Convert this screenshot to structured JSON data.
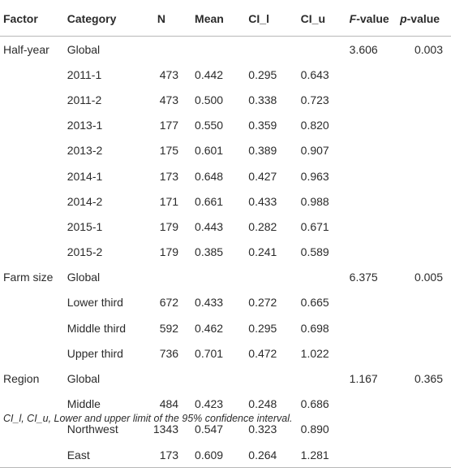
{
  "headers": {
    "factor": "Factor",
    "category": "Category",
    "n": "N",
    "mean": "Mean",
    "ci_l": "CI_l",
    "ci_u": "CI_u",
    "f_italic": "F",
    "f_rest": "-value",
    "p_italic": "p",
    "p_rest": "-value"
  },
  "rows": [
    {
      "factor": "Half-year",
      "category": "Global",
      "n": "",
      "mean": "",
      "ci_l": "",
      "ci_u": "",
      "f": "3.606",
      "p": "0.003"
    },
    {
      "factor": "",
      "category": "2011-1",
      "n": "473",
      "mean": "0.442",
      "ci_l": "0.295",
      "ci_u": "0.643",
      "f": "",
      "p": ""
    },
    {
      "factor": "",
      "category": "2011-2",
      "n": "473",
      "mean": "0.500",
      "ci_l": "0.338",
      "ci_u": "0.723",
      "f": "",
      "p": ""
    },
    {
      "factor": "",
      "category": "2013-1",
      "n": "177",
      "mean": "0.550",
      "ci_l": "0.359",
      "ci_u": "0.820",
      "f": "",
      "p": ""
    },
    {
      "factor": "",
      "category": "2013-2",
      "n": "175",
      "mean": "0.601",
      "ci_l": "0.389",
      "ci_u": "0.907",
      "f": "",
      "p": ""
    },
    {
      "factor": "",
      "category": "2014-1",
      "n": "173",
      "mean": "0.648",
      "ci_l": "0.427",
      "ci_u": "0.963",
      "f": "",
      "p": ""
    },
    {
      "factor": "",
      "category": "2014-2",
      "n": "171",
      "mean": "0.661",
      "ci_l": "0.433",
      "ci_u": "0.988",
      "f": "",
      "p": ""
    },
    {
      "factor": "",
      "category": "2015-1",
      "n": "179",
      "mean": "0.443",
      "ci_l": "0.282",
      "ci_u": "0.671",
      "f": "",
      "p": ""
    },
    {
      "factor": "",
      "category": "2015-2",
      "n": "179",
      "mean": "0.385",
      "ci_l": "0.241",
      "ci_u": "0.589",
      "f": "",
      "p": ""
    },
    {
      "factor": "Farm size",
      "category": "Global",
      "n": "",
      "mean": "",
      "ci_l": "",
      "ci_u": "",
      "f": "6.375",
      "p": "0.005"
    },
    {
      "factor": "",
      "category": "Lower third",
      "n": "672",
      "mean": "0.433",
      "ci_l": "0.272",
      "ci_u": "0.665",
      "f": "",
      "p": ""
    },
    {
      "factor": "",
      "category": "Middle third",
      "n": "592",
      "mean": "0.462",
      "ci_l": "0.295",
      "ci_u": "0.698",
      "f": "",
      "p": ""
    },
    {
      "factor": "",
      "category": "Upper third",
      "n": "736",
      "mean": "0.701",
      "ci_l": "0.472",
      "ci_u": "1.022",
      "f": "",
      "p": ""
    },
    {
      "factor": "Region",
      "category": "Global",
      "n": "",
      "mean": "",
      "ci_l": "",
      "ci_u": "",
      "f": "1.167",
      "p": "0.365"
    },
    {
      "factor": "",
      "category": "Middle",
      "n": "484",
      "mean": "0.423",
      "ci_l": "0.248",
      "ci_u": "0.686",
      "f": "",
      "p": ""
    },
    {
      "factor": "",
      "category": "Northwest",
      "n": "1343",
      "mean": "0.547",
      "ci_l": "0.323",
      "ci_u": "0.890",
      "f": "",
      "p": ""
    },
    {
      "factor": "",
      "category": "East",
      "n": "173",
      "mean": "0.609",
      "ci_l": "0.264",
      "ci_u": "1.281",
      "f": "",
      "p": ""
    }
  ],
  "footnote": "CI_l, CI_u, Lower and upper limit of the 95% confidence interval."
}
